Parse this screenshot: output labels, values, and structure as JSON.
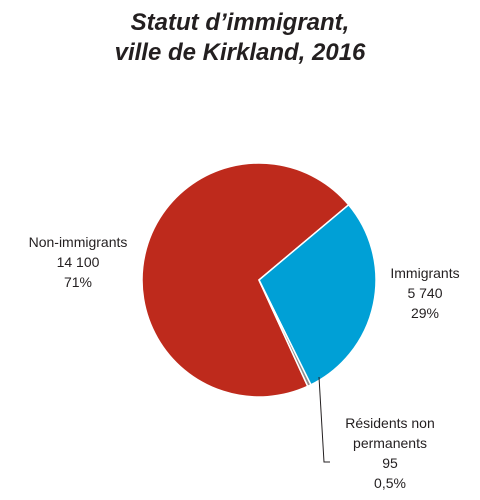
{
  "chart_data": {
    "type": "pie",
    "title_lines": [
      "Statut d’immigrant,",
      "ville de Kirkland, 2016"
    ],
    "slices": [
      {
        "label": "Non-immigrants",
        "value": 14100,
        "value_text": "14 100",
        "percent_text": "71%",
        "color": "#be2a1c"
      },
      {
        "label": "Immigrants",
        "value": 5740,
        "value_text": "5 740",
        "percent_text": "29%",
        "color": "#00a0d6"
      },
      {
        "label_lines": [
          "Résidents non",
          "permanents"
        ],
        "value": 95,
        "value_text": "95",
        "percent_text": "0,5%",
        "color": "#8c8c8c"
      }
    ]
  }
}
